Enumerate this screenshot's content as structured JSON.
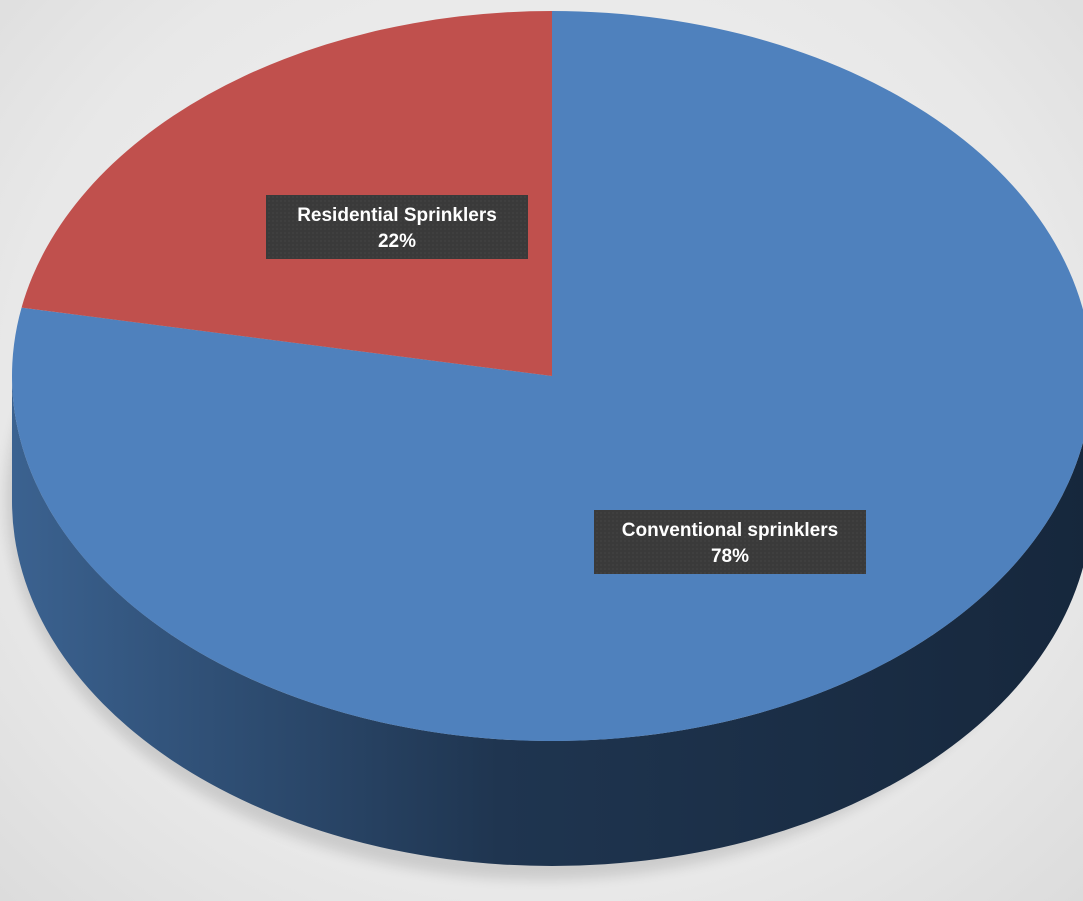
{
  "chart_data": {
    "type": "pie",
    "title": "",
    "style": "3d",
    "slices": [
      {
        "label": "Conventional sprinklers",
        "value": 78,
        "value_label": "78%",
        "color": "#4f81bd",
        "side_color": "#2c4a72"
      },
      {
        "label": "Residential Sprinklers",
        "value": 22,
        "value_label": "22%",
        "color": "#c0504d",
        "side_color": "#7a2f2d"
      }
    ],
    "start_angle_deg": 0,
    "direction": "clockwise",
    "legend": "none"
  }
}
